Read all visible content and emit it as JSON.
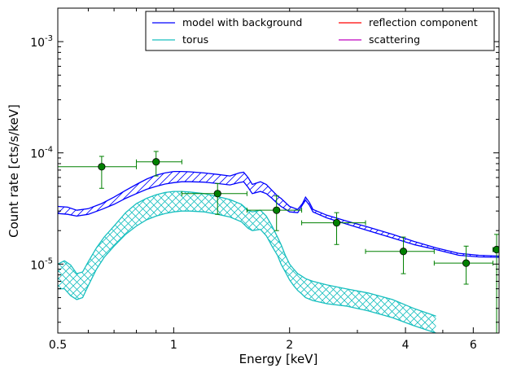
{
  "chart_data": {
    "type": "line",
    "xlabel": "Energy [keV]",
    "ylabel": "Count rate [cts/s/keV]",
    "xscale": "log",
    "yscale": "log",
    "xlim": [
      0.5,
      7.0
    ],
    "ylim": [
      2.4e-06,
      0.002
    ],
    "grid": false,
    "legend_position": "top-right",
    "x_ticks": [
      {
        "value": 0.5,
        "label": "0.5"
      },
      {
        "value": 1,
        "label": "1"
      },
      {
        "value": 2,
        "label": "2"
      },
      {
        "value": 4,
        "label": "4"
      },
      {
        "value": 6,
        "label": "6"
      }
    ],
    "y_ticks": [
      {
        "value": 1e-05,
        "mant": "10",
        "exp": "-5"
      },
      {
        "value": 0.0001,
        "mant": "10",
        "exp": "-4"
      },
      {
        "value": 0.001,
        "mant": "10",
        "exp": "-3"
      }
    ],
    "legend": [
      {
        "label": "model with background",
        "color": "#0000ff"
      },
      {
        "label": "torus",
        "color": "#17bfbf"
      },
      {
        "label": "reflection component",
        "color": "#ff0000"
      },
      {
        "label": "scattering",
        "color": "#bf00bf"
      }
    ],
    "series": [
      {
        "name": "model with background",
        "color": "#0000ff",
        "x": [
          0.5,
          0.53,
          0.56,
          0.6,
          0.65,
          0.7,
          0.75,
          0.8,
          0.85,
          0.9,
          0.95,
          1.0,
          1.05,
          1.1,
          1.2,
          1.3,
          1.4,
          1.48,
          1.52,
          1.56,
          1.6,
          1.68,
          1.74,
          1.8,
          1.86,
          1.9,
          2.0,
          2.1,
          2.16,
          2.2,
          2.25,
          2.3,
          2.5,
          2.8,
          3.2,
          3.7,
          4.2,
          4.8,
          5.5,
          6.2,
          7.0
        ],
        "upper": [
          3.3e-05,
          3.25e-05,
          3.05e-05,
          3.15e-05,
          3.5e-05,
          4e-05,
          4.6e-05,
          5.2e-05,
          5.8e-05,
          6.3e-05,
          6.6e-05,
          6.8e-05,
          6.8e-05,
          6.75e-05,
          6.6e-05,
          6.4e-05,
          6.2e-05,
          6.6e-05,
          6.7e-05,
          6e-05,
          5.2e-05,
          5.5e-05,
          5.2e-05,
          4.6e-05,
          4.1e-05,
          3.9e-05,
          3.3e-05,
          3.1e-05,
          3.5e-05,
          4e-05,
          3.6e-05,
          3.1e-05,
          2.75e-05,
          2.45e-05,
          2.15e-05,
          1.85e-05,
          1.6e-05,
          1.4e-05,
          1.25e-05,
          1.2e-05,
          1.18e-05
        ],
        "lower": [
          2.85e-05,
          2.8e-05,
          2.7e-05,
          2.8e-05,
          3.1e-05,
          3.45e-05,
          3.9e-05,
          4.3e-05,
          4.7e-05,
          5e-05,
          5.25e-05,
          5.4e-05,
          5.5e-05,
          5.5e-05,
          5.45e-05,
          5.3e-05,
          5.15e-05,
          5.4e-05,
          5.5e-05,
          4.9e-05,
          4.3e-05,
          4.5e-05,
          4.3e-05,
          3.9e-05,
          3.5e-05,
          3.3e-05,
          2.95e-05,
          2.9e-05,
          3.4e-05,
          3.75e-05,
          3.4e-05,
          2.95e-05,
          2.6e-05,
          2.3e-05,
          2e-05,
          1.72e-05,
          1.5e-05,
          1.35e-05,
          1.2e-05,
          1.16e-05,
          1.15e-05
        ]
      },
      {
        "name": "torus",
        "color": "#17bfbf",
        "x": [
          0.5,
          0.52,
          0.54,
          0.56,
          0.58,
          0.6,
          0.63,
          0.66,
          0.7,
          0.75,
          0.8,
          0.85,
          0.9,
          0.95,
          1.0,
          1.05,
          1.1,
          1.2,
          1.3,
          1.4,
          1.5,
          1.56,
          1.6,
          1.68,
          1.74,
          1.8,
          1.86,
          1.9,
          1.95,
          2.0,
          2.05,
          2.1,
          2.15,
          2.2,
          2.3,
          2.5,
          2.8,
          3.2,
          3.7,
          4.2,
          4.8
        ],
        "upper": [
          1e-05,
          1.07e-05,
          9.8e-06,
          8.2e-06,
          8.5e-06,
          1.05e-05,
          1.4e-05,
          1.75e-05,
          2.2e-05,
          2.9e-05,
          3.5e-05,
          3.9e-05,
          4.2e-05,
          4.4e-05,
          4.5e-05,
          4.5e-05,
          4.45e-05,
          4.3e-05,
          4.05e-05,
          3.8e-05,
          3.45e-05,
          3.05e-05,
          2.95e-05,
          3.05e-05,
          2.7e-05,
          2.2e-05,
          1.75e-05,
          1.5e-05,
          1.2e-05,
          1e-05,
          9e-06,
          8.2e-06,
          7.8e-06,
          7.4e-06,
          7e-06,
          6.5e-06,
          6e-06,
          5.5e-06,
          4.8e-06,
          4e-06,
          3.4e-06
        ],
        "lower": [
          6e-06,
          6e-06,
          5.2e-06,
          4.8e-06,
          5e-06,
          6.4e-06,
          9e-06,
          1.15e-05,
          1.45e-05,
          1.85e-05,
          2.2e-05,
          2.5e-05,
          2.7e-05,
          2.85e-05,
          2.95e-05,
          3e-05,
          3e-05,
          2.95e-05,
          2.8e-05,
          2.65e-05,
          2.4e-05,
          2.1e-05,
          2e-05,
          2.05e-05,
          1.8e-05,
          1.45e-05,
          1.2e-05,
          1e-05,
          8.5e-06,
          7.2e-06,
          6.4e-06,
          5.8e-06,
          5.4e-06,
          5e-06,
          4.7e-06,
          4.4e-06,
          4.2e-06,
          3.8e-06,
          3.3e-06,
          2.8e-06,
          2.4e-06
        ]
      }
    ],
    "data_points": {
      "color": "#008000",
      "points": [
        {
          "x": 0.65,
          "y": 7.5e-05,
          "xlo": 0.5,
          "xhi": 0.8,
          "ylo": 4.8e-05,
          "yhi": 9.3e-05
        },
        {
          "x": 0.9,
          "y": 8.3e-05,
          "xlo": 0.8,
          "xhi": 1.05,
          "ylo": 6.2e-05,
          "yhi": 0.000103
        },
        {
          "x": 1.3,
          "y": 4.3e-05,
          "xlo": 1.05,
          "xhi": 1.55,
          "ylo": 2.8e-05,
          "yhi": 5.3e-05
        },
        {
          "x": 1.85,
          "y": 3.05e-05,
          "xlo": 1.55,
          "xhi": 2.15,
          "ylo": 2e-05,
          "yhi": 4.1e-05
        },
        {
          "x": 2.65,
          "y": 2.35e-05,
          "xlo": 2.15,
          "xhi": 3.15,
          "ylo": 1.5e-05,
          "yhi": 2.9e-05
        },
        {
          "x": 3.95,
          "y": 1.3e-05,
          "xlo": 3.15,
          "xhi": 4.75,
          "ylo": 8.2e-06,
          "yhi": 1.75e-05
        },
        {
          "x": 5.75,
          "y": 1.02e-05,
          "xlo": 4.75,
          "xhi": 6.75,
          "ylo": 6.6e-06,
          "yhi": 1.45e-05
        },
        {
          "x": 6.9,
          "y": 1.35e-05,
          "xlo": 6.75,
          "xhi": 7.0,
          "ylo": 2.4e-06,
          "yhi": 1.85e-05
        }
      ]
    }
  }
}
